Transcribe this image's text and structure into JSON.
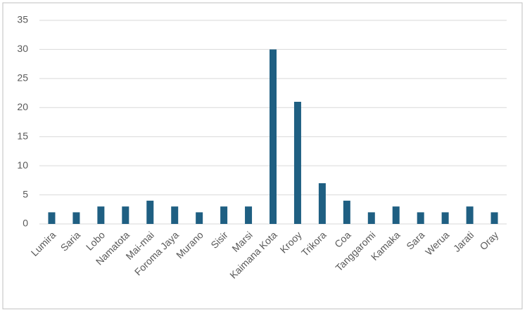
{
  "chart_data": {
    "type": "bar",
    "categories": [
      "Lumira",
      "Saria",
      "Lobo",
      "Namatota",
      "Mai-mai",
      "Foroma Jaya",
      "Murano",
      "Sisir",
      "Marsi",
      "Kaimana Kota",
      "Krooy",
      "Trikora",
      "Coa",
      "Tanggaromi",
      "Kamaka",
      "Sara",
      "Werua",
      "Jarati",
      "Oray"
    ],
    "values": [
      2,
      2,
      3,
      3,
      4,
      3,
      2,
      3,
      3,
      30,
      21,
      7,
      4,
      2,
      3,
      2,
      2,
      3,
      2
    ],
    "color": "#1f5f82",
    "ylim": [
      0,
      35
    ],
    "yticks": [
      0,
      5,
      10,
      15,
      20,
      25,
      30,
      35
    ],
    "grid": true
  }
}
